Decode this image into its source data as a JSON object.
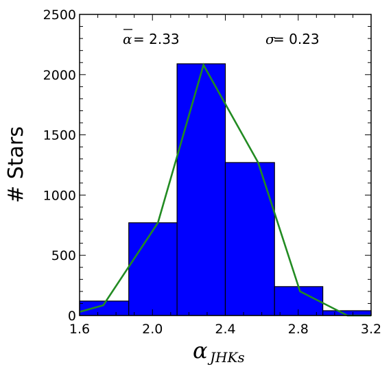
{
  "chart_data": {
    "type": "bar",
    "title": "",
    "xlabel": "α",
    "xlabel_sub": "JHKs",
    "ylabel": "# Stars",
    "xlim": [
      1.6,
      3.2
    ],
    "ylim": [
      0,
      2500
    ],
    "xticks": [
      1.6,
      2.0,
      2.4,
      2.8,
      3.2
    ],
    "xtick_labels": [
      "1.6",
      "2.0",
      "2.4",
      "2.8",
      "3.2"
    ],
    "yticks": [
      0,
      500,
      1000,
      1500,
      2000,
      2500
    ],
    "ytick_labels": [
      "0",
      "500",
      "1000",
      "1500",
      "2000",
      "2500"
    ],
    "bins": [
      {
        "x0": 1.6,
        "x1": 1.87,
        "value": 120
      },
      {
        "x0": 1.87,
        "x1": 2.135,
        "value": 770
      },
      {
        "x0": 2.135,
        "x1": 2.4,
        "value": 2090
      },
      {
        "x0": 2.4,
        "x1": 2.67,
        "value": 1270
      },
      {
        "x0": 2.67,
        "x1": 2.935,
        "value": 240
      },
      {
        "x0": 2.935,
        "x1": 3.2,
        "value": 40
      }
    ],
    "fit_line": {
      "x": [
        1.6,
        1.73,
        2.03,
        2.28,
        2.58,
        2.81,
        3.07,
        3.2
      ],
      "y": [
        30,
        85,
        770,
        2080,
        1270,
        200,
        0,
        0
      ]
    },
    "grid": false,
    "legend": "none",
    "colors": {
      "bar_fill": "#0000ff",
      "bar_edge": "#000000",
      "line": "#228b22"
    }
  },
  "annotations": {
    "mean_symbol": "α",
    "mean_text": " = 2.33",
    "sigma_symbol": "σ",
    "sigma_text": " =  0.23"
  }
}
